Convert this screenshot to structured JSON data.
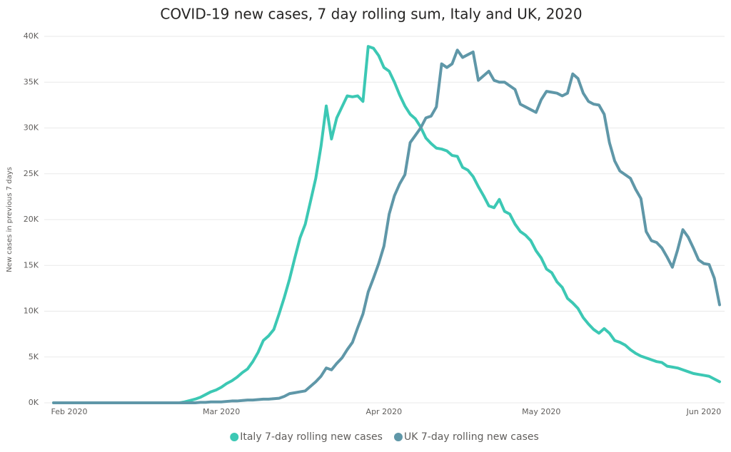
{
  "chart_data": {
    "type": "line",
    "title": "COVID-19 new cases, 7 day rolling sum, Italy and UK, 2020",
    "y_label": "New cases in previous 7 days",
    "categories": [
      null,
      null,
      null,
      "Feb 2020",
      null,
      null,
      null,
      null,
      null,
      null,
      null,
      null,
      null,
      null,
      null,
      null,
      null,
      null,
      null,
      null,
      null,
      null,
      null,
      null,
      null,
      null,
      null,
      null,
      null,
      null,
      null,
      null,
      "Mar 2020",
      null,
      null,
      null,
      null,
      null,
      null,
      null,
      null,
      null,
      null,
      null,
      null,
      null,
      null,
      null,
      null,
      null,
      null,
      null,
      null,
      null,
      null,
      null,
      null,
      null,
      null,
      null,
      null,
      null,
      null,
      "Apr 2020",
      null,
      null,
      null,
      null,
      null,
      null,
      null,
      null,
      null,
      null,
      null,
      null,
      null,
      null,
      null,
      null,
      null,
      null,
      null,
      null,
      null,
      null,
      null,
      null,
      null,
      null,
      null,
      null,
      null,
      "May 2020",
      null,
      null,
      null,
      null,
      null,
      null,
      null,
      null,
      null,
      null,
      null,
      null,
      null,
      null,
      null,
      null,
      null,
      null,
      null,
      null,
      null,
      null,
      null,
      null,
      null,
      null,
      null,
      null,
      null,
      null,
      "Jun 2020",
      null,
      null,
      null
    ],
    "series": [
      {
        "name": "Italy 7-day rolling new cases",
        "color": "#3cc8b4",
        "values": [
          0,
          0,
          0,
          0,
          0,
          0,
          0,
          0,
          0,
          0,
          0,
          0,
          0,
          0,
          0,
          0,
          0,
          0,
          0,
          0,
          0,
          0,
          0,
          0,
          0,
          100,
          250,
          400,
          600,
          900,
          1200,
          1400,
          1700,
          2100,
          2400,
          2800,
          3300,
          3700,
          4500,
          5500,
          6800,
          7300,
          8000,
          9700,
          11500,
          13500,
          15800,
          18000,
          19500,
          22000,
          24500,
          28000,
          32400,
          28800,
          31100,
          32300,
          33500,
          33400,
          33500,
          32900,
          38900,
          38700,
          37900,
          36600,
          36200,
          35000,
          33600,
          32400,
          31500,
          31000,
          30100,
          28900,
          28300,
          27800,
          27700,
          27500,
          27000,
          26900,
          25700,
          25400,
          24700,
          23600,
          22600,
          21500,
          21300,
          22200,
          20900,
          20600,
          19500,
          18700,
          18300,
          17700,
          16600,
          15800,
          14600,
          14200,
          13200,
          12600,
          11400,
          10900,
          10300,
          9300,
          8600,
          8000,
          7600,
          8100,
          7600,
          6800,
          6600,
          6300,
          5800,
          5400,
          5100,
          4900,
          4700,
          4500,
          4400,
          4000,
          3900,
          3800,
          3600,
          3400,
          3200,
          3100,
          3000,
          2900,
          2600,
          2300
        ]
      },
      {
        "name": "UK 7-day rolling new cases",
        "color": "#5f97a8",
        "values": [
          0,
          0,
          0,
          0,
          0,
          0,
          0,
          0,
          0,
          0,
          0,
          0,
          0,
          0,
          0,
          0,
          0,
          0,
          0,
          0,
          0,
          0,
          0,
          0,
          0,
          0,
          0,
          0,
          50,
          50,
          100,
          100,
          100,
          150,
          200,
          200,
          250,
          300,
          300,
          350,
          400,
          400,
          450,
          500,
          700,
          1000,
          1100,
          1200,
          1300,
          1800,
          2300,
          2900,
          3800,
          3600,
          4300,
          4900,
          5800,
          6600,
          8200,
          9700,
          12100,
          13600,
          15200,
          17100,
          20600,
          22600,
          23900,
          24900,
          28400,
          29200,
          30000,
          31100,
          31300,
          32300,
          37000,
          36600,
          37000,
          38500,
          37700,
          38000,
          38300,
          35200,
          35700,
          36200,
          35200,
          35000,
          35000,
          34600,
          34200,
          32600,
          32300,
          32000,
          31700,
          33100,
          34000,
          33900,
          33800,
          33500,
          33800,
          35900,
          35400,
          33800,
          32900,
          32600,
          32500,
          31500,
          28400,
          26400,
          25300,
          24900,
          24500,
          23300,
          22300,
          18700,
          17700,
          17500,
          16900,
          15900,
          14800,
          16700,
          18900,
          18100,
          16900,
          15600,
          15200,
          15100,
          13600,
          10700
        ]
      }
    ],
    "ylim": [
      0,
      40000
    ],
    "yticks": [
      {
        "value": 0,
        "label": "0K"
      },
      {
        "value": 5000,
        "label": "5K"
      },
      {
        "value": 10000,
        "label": "10K"
      },
      {
        "value": 15000,
        "label": "15K"
      },
      {
        "value": 20000,
        "label": "20K"
      },
      {
        "value": 25000,
        "label": "25K"
      },
      {
        "value": 30000,
        "label": "30K"
      },
      {
        "value": 35000,
        "label": "35K"
      },
      {
        "value": 40000,
        "label": "40K"
      }
    ],
    "grid": true,
    "legend": "bottom"
  }
}
